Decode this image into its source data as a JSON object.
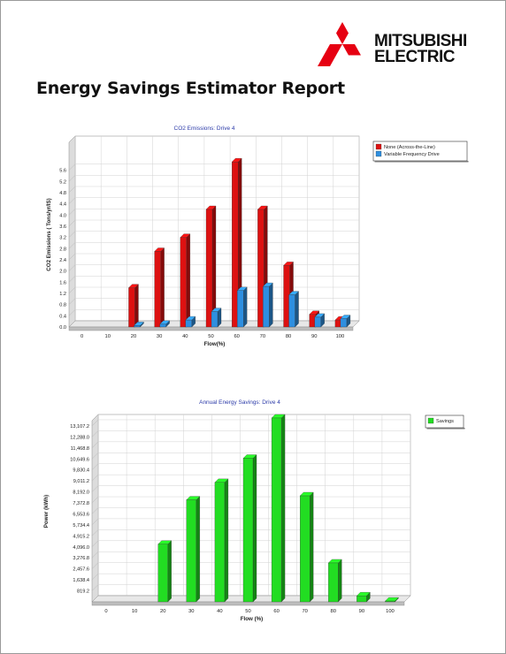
{
  "brand": {
    "line1": "MITSUBISHI",
    "line2": "ELECTRIC",
    "logo_color": "#e60012"
  },
  "report_title": "Energy Savings Estimator Report",
  "chart_data": [
    {
      "type": "bar",
      "title": "CO2 Emissions: Drive 4",
      "xlabel": "Flow(%)",
      "ylabel": "CO2 Emissions ( Tons/yr/IS)",
      "categories": [
        "0",
        "10",
        "20",
        "30",
        "40",
        "50",
        "60",
        "70",
        "80",
        "90",
        "100"
      ],
      "y_ticks": [
        "0.0",
        "0.4",
        "0.8",
        "1.2",
        "1.6",
        "2.0",
        "2.4",
        "2.8",
        "3.2",
        "3.6",
        "4.0",
        "4.4",
        "4.8",
        "5.2",
        "5.6"
      ],
      "ylim": [
        0,
        6.6
      ],
      "grid": true,
      "legend_position": "right",
      "series": [
        {
          "name": "None (Across-the-Line)",
          "color": "#dd1111",
          "values": [
            0,
            0,
            1.4,
            2.7,
            3.2,
            4.2,
            5.9,
            4.2,
            2.2,
            0.45,
            0.25
          ]
        },
        {
          "name": "Variable Frequency Drive",
          "color": "#2e8fe0",
          "values": [
            0,
            0,
            0.05,
            0.1,
            0.25,
            0.55,
            1.3,
            1.45,
            1.15,
            0.35,
            0.3
          ]
        }
      ]
    },
    {
      "type": "bar",
      "title": "Annual Energy Savings: Drive 4",
      "xlabel": "Flow (%)",
      "ylabel": "Power (kWh)",
      "categories": [
        "0",
        "10",
        "20",
        "30",
        "40",
        "50",
        "60",
        "70",
        "80",
        "90",
        "100"
      ],
      "y_ticks": [
        "819.2",
        "1,638.4",
        "2,457.6",
        "3,276.8",
        "4,096.0",
        "4,915.2",
        "5,734.4",
        "6,553.6",
        "7,372.8",
        "8,192.0",
        "9,011.2",
        "9,830.4",
        "10,649.6",
        "11,468.8",
        "12,288.0",
        "13,107.2"
      ],
      "ylim": [
        0,
        13500
      ],
      "grid": true,
      "legend_position": "right",
      "series": [
        {
          "name": "Savings",
          "color": "#22dd22",
          "values": [
            0,
            0,
            4300,
            7600,
            8900,
            10700,
            13700,
            7900,
            2900,
            450,
            60
          ]
        }
      ]
    }
  ]
}
